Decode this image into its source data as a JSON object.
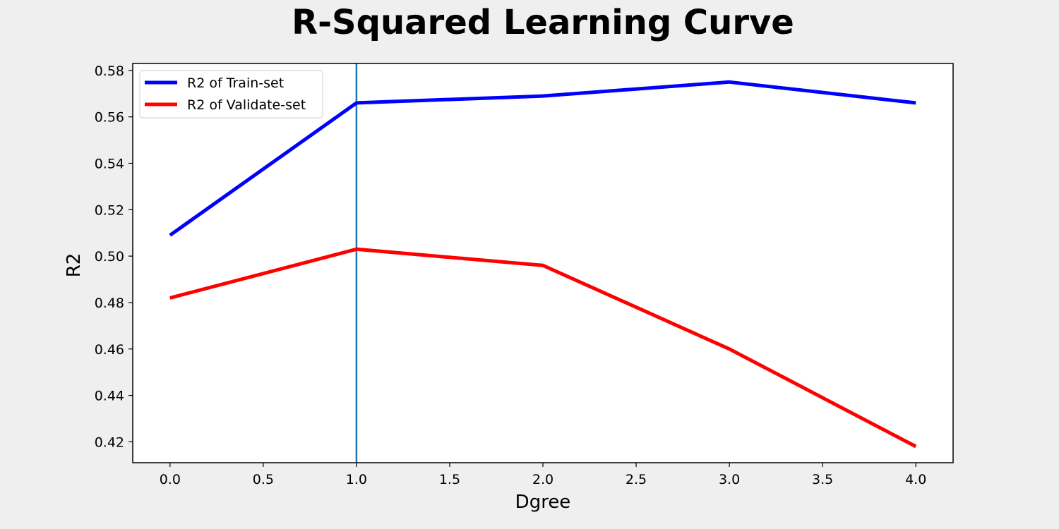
{
  "chart_data": {
    "type": "line",
    "title": "R-Squared Learning Curve",
    "xlabel": "Dgree",
    "ylabel": "R2",
    "xlim": [
      -0.2,
      4.2
    ],
    "ylim": [
      0.411,
      0.583
    ],
    "x_ticks": [
      0.0,
      0.5,
      1.0,
      1.5,
      2.0,
      2.5,
      3.0,
      3.5,
      4.0
    ],
    "x_tick_labels": [
      "0.0",
      "0.5",
      "1.0",
      "1.5",
      "2.0",
      "2.5",
      "3.0",
      "3.5",
      "4.0"
    ],
    "y_ticks": [
      0.42,
      0.44,
      0.46,
      0.48,
      0.5,
      0.52,
      0.54,
      0.56,
      0.58
    ],
    "y_tick_labels": [
      "0.42",
      "0.44",
      "0.46",
      "0.48",
      "0.50",
      "0.52",
      "0.54",
      "0.56",
      "0.58"
    ],
    "grid": false,
    "legend_position": "top-left",
    "x": [
      0,
      1,
      2,
      3,
      4
    ],
    "series": [
      {
        "name": "R2 of Train-set",
        "color": "#0000ff",
        "values": [
          0.509,
          0.566,
          0.569,
          0.575,
          0.566
        ]
      },
      {
        "name": "R2 of Validate-set",
        "color": "#ff0000",
        "values": [
          0.482,
          0.503,
          0.496,
          0.46,
          0.418
        ]
      }
    ],
    "vline": {
      "x": 1.0,
      "color": "#1f77b4"
    }
  }
}
